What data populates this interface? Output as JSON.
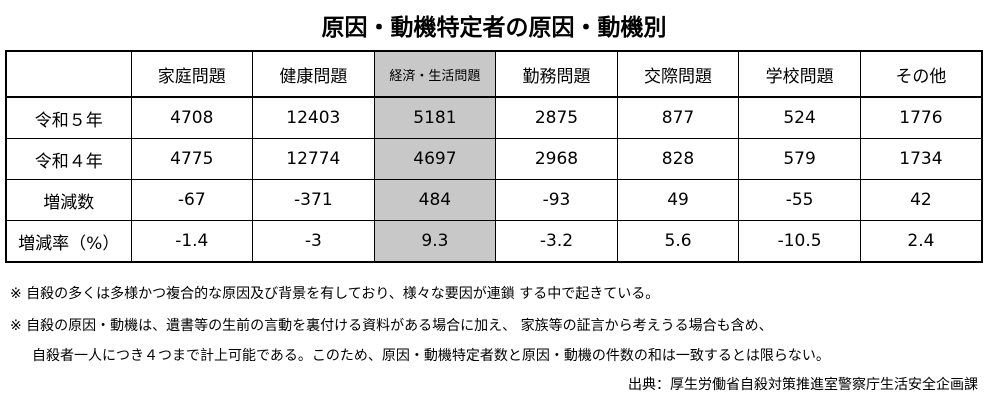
{
  "title": "原因・動機特定者の原因・動機別",
  "table": {
    "header": [
      "家庭問題",
      "健康問題",
      "経済・生活問題",
      "勤務問題",
      "交際問題",
      "学校問題",
      "その他"
    ],
    "rows": [
      {
        "label": "令和５年",
        "cells": [
          4708,
          12403,
          5181,
          2875,
          877,
          524,
          1776
        ]
      },
      {
        "label": "令和４年",
        "cells": [
          4775,
          12774,
          4697,
          2968,
          828,
          579,
          1734
        ]
      },
      {
        "label": "増減数",
        "cells": [
          -67,
          -371,
          484,
          -93,
          49,
          -55,
          42
        ]
      },
      {
        "label": "増減率（%）",
        "cells": [
          -1.4,
          -3,
          9.3,
          -3.2,
          5.6,
          -10.5,
          2.4
        ]
      }
    ]
  },
  "notes": [
    "※ 自殺の多くは多様かつ複合的な原因及び背景を有しており、様々な要因が連鎖 する中で起きている。",
    "※ 自殺の原因・動機は、遺書等の生前の言動を裏付ける資料がある場合に加え、 家族等の証言から考えうる場合も含め、",
    "自殺者一人につき４つまで計上可能である。このため、原因・動機特定者数と原因・動機の件数の和は一致するとは限らない。"
  ],
  "source": "出典：厚生労働省自殺対策推進室警察庁生活安全企画課"
}
